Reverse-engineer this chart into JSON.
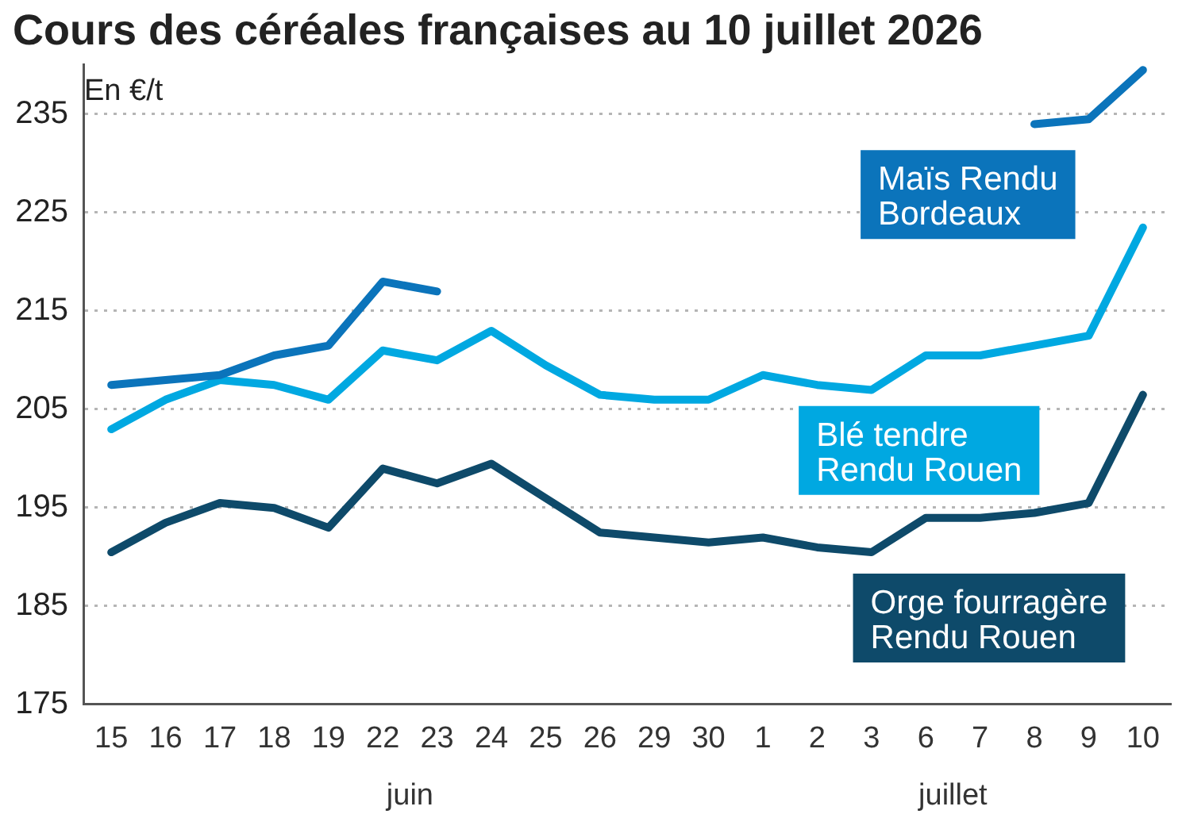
{
  "chart_data": {
    "type": "line",
    "title": "Cours des céréales françaises au 10 juillet 2026",
    "ylabel": "En €/t",
    "categories": [
      "15",
      "16",
      "17",
      "18",
      "19",
      "22",
      "23",
      "24",
      "25",
      "26",
      "29",
      "30",
      "1",
      "2",
      "3",
      "6",
      "7",
      "8",
      "9",
      "10"
    ],
    "series": [
      {
        "name": "Maïs Rendu Bordeaux",
        "color": "#0b74bb",
        "values": [
          207.5,
          208,
          208.5,
          210.5,
          211.5,
          218,
          217,
          null,
          null,
          null,
          null,
          null,
          null,
          null,
          null,
          null,
          null,
          234,
          234.5,
          239.5
        ]
      },
      {
        "name": "Blé tendre Rendu Rouen",
        "color": "#00a8e1",
        "values": [
          203,
          206,
          208,
          207.5,
          206,
          211,
          210,
          213,
          209.5,
          206.5,
          206,
          206,
          208.5,
          207.5,
          207,
          210.5,
          210.5,
          211.5,
          212.5,
          223.5
        ]
      },
      {
        "name": "Orge fourragère Rendu Rouen",
        "color": "#0e4a6a",
        "values": [
          190.5,
          193.5,
          195.5,
          195,
          193,
          199,
          197.5,
          199.5,
          196,
          192.5,
          192,
          191.5,
          192,
          191,
          190.5,
          194,
          194,
          194.5,
          195.5,
          206.5
        ]
      }
    ],
    "ylim": [
      175,
      240
    ],
    "yticks": [
      175,
      185,
      195,
      205,
      215,
      225,
      235
    ],
    "grid": "y",
    "annotations": [
      "juin",
      "juillet"
    ]
  }
}
